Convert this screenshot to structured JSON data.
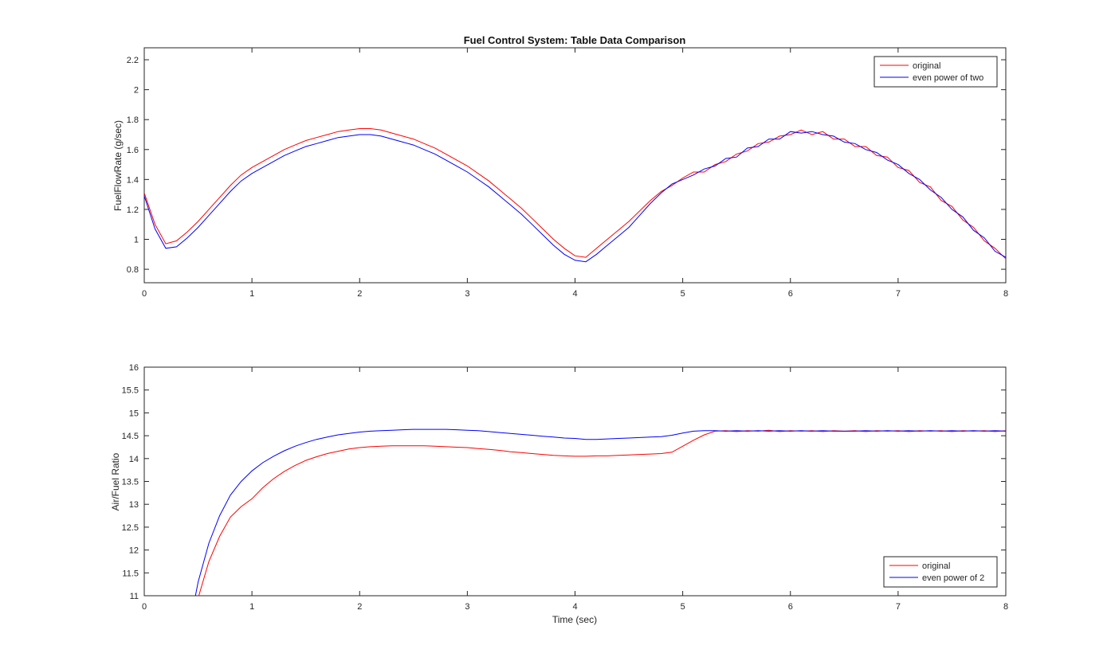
{
  "figure": {
    "background": "#ffffff",
    "axis_color": "#262626",
    "text_color": "#262626",
    "legend_border_color": "#262626"
  },
  "chart_data": [
    {
      "type": "line",
      "title": "Fuel Control System: Table Data Comparison",
      "xlabel": "",
      "ylabel": "FuelFlowRate (g/sec)",
      "xlim": [
        0,
        8
      ],
      "ylim": [
        0.71,
        2.28
      ],
      "xticks": [
        0,
        1,
        2,
        3,
        4,
        5,
        6,
        7,
        8
      ],
      "yticks": [
        0.8,
        1,
        1.2,
        1.4,
        1.6,
        1.8,
        2,
        2.2
      ],
      "grid": false,
      "box": true,
      "legend": {
        "position": "top-right",
        "entries": [
          "original",
          "even power of two"
        ]
      },
      "series": [
        {
          "name": "original",
          "color": "#ff0000",
          "x_start": 0.0,
          "x_step": 0.1,
          "values": [
            1.31,
            1.1,
            0.97,
            0.99,
            1.05,
            1.12,
            1.2,
            1.28,
            1.36,
            1.43,
            1.48,
            1.52,
            1.56,
            1.6,
            1.63,
            1.66,
            1.68,
            1.7,
            1.72,
            1.73,
            1.74,
            1.74,
            1.73,
            1.71,
            1.69,
            1.67,
            1.64,
            1.61,
            1.57,
            1.53,
            1.49,
            1.44,
            1.39,
            1.33,
            1.27,
            1.21,
            1.14,
            1.07,
            1.0,
            0.94,
            0.89,
            0.88,
            0.94,
            1.0,
            1.06,
            1.12,
            1.19,
            1.26,
            1.32,
            1.36,
            1.41,
            1.45,
            1.45,
            1.5,
            1.52,
            1.57,
            1.59,
            1.64,
            1.65,
            1.69,
            1.7,
            1.73,
            1.7,
            1.72,
            1.67,
            1.67,
            1.62,
            1.62,
            1.56,
            1.55,
            1.48,
            1.46,
            1.38,
            1.35,
            1.26,
            1.22,
            1.13,
            1.08,
            0.99,
            0.94,
            0.87
          ]
        },
        {
          "name": "even power of two",
          "color": "#0000ff",
          "x_start": 0.0,
          "x_step": 0.1,
          "values": [
            1.29,
            1.07,
            0.94,
            0.95,
            1.01,
            1.08,
            1.16,
            1.24,
            1.32,
            1.39,
            1.44,
            1.48,
            1.52,
            1.56,
            1.59,
            1.62,
            1.64,
            1.66,
            1.68,
            1.69,
            1.7,
            1.7,
            1.69,
            1.67,
            1.65,
            1.63,
            1.6,
            1.57,
            1.53,
            1.49,
            1.45,
            1.4,
            1.35,
            1.29,
            1.23,
            1.17,
            1.1,
            1.03,
            0.96,
            0.9,
            0.86,
            0.85,
            0.9,
            0.96,
            1.02,
            1.08,
            1.16,
            1.24,
            1.31,
            1.37,
            1.4,
            1.43,
            1.47,
            1.49,
            1.54,
            1.55,
            1.61,
            1.62,
            1.67,
            1.67,
            1.72,
            1.71,
            1.72,
            1.7,
            1.69,
            1.65,
            1.64,
            1.6,
            1.58,
            1.53,
            1.5,
            1.44,
            1.4,
            1.33,
            1.28,
            1.2,
            1.15,
            1.06,
            1.01,
            0.92,
            0.88
          ]
        }
      ]
    },
    {
      "type": "line",
      "title": "",
      "xlabel": "Time (sec)",
      "ylabel": "Air/Fuel Ratio",
      "xlim": [
        0,
        8
      ],
      "ylim": [
        11,
        16
      ],
      "xticks": [
        0,
        1,
        2,
        3,
        4,
        5,
        6,
        7,
        8
      ],
      "yticks": [
        11,
        11.5,
        12,
        12.5,
        13,
        13.5,
        14,
        14.5,
        15,
        15.5,
        16
      ],
      "grid": false,
      "box": true,
      "legend": {
        "position": "bottom-right",
        "entries": [
          "original",
          "even power of 2"
        ]
      },
      "series": [
        {
          "name": "original",
          "color": "#ff0000",
          "x_start": 0.4,
          "x_step": 0.1,
          "values": [
            9.6,
            10.95,
            11.75,
            12.3,
            12.72,
            12.95,
            13.12,
            13.36,
            13.56,
            13.72,
            13.85,
            13.96,
            14.04,
            14.11,
            14.16,
            14.21,
            14.24,
            14.26,
            14.27,
            14.28,
            14.28,
            14.28,
            14.28,
            14.27,
            14.26,
            14.25,
            14.24,
            14.22,
            14.2,
            14.18,
            14.15,
            14.13,
            14.11,
            14.09,
            14.07,
            14.06,
            14.05,
            14.05,
            14.06,
            14.06,
            14.07,
            14.08,
            14.09,
            14.1,
            14.11,
            14.14,
            14.27,
            14.4,
            14.52,
            14.6,
            14.61,
            14.59,
            14.61,
            14.6,
            14.62,
            14.59,
            14.61,
            14.6,
            14.61,
            14.59,
            14.61,
            14.6,
            14.61,
            14.59,
            14.61,
            14.6,
            14.61,
            14.59,
            14.61,
            14.6,
            14.61,
            14.59,
            14.61,
            14.6,
            14.61,
            14.59,
            14.61
          ]
        },
        {
          "name": "even power of 2",
          "color": "#0000ff",
          "x_start": 0.4,
          "x_step": 0.1,
          "values": [
            10.1,
            11.3,
            12.15,
            12.75,
            13.2,
            13.5,
            13.73,
            13.91,
            14.05,
            14.17,
            14.27,
            14.35,
            14.42,
            14.47,
            14.52,
            14.55,
            14.58,
            14.6,
            14.61,
            14.62,
            14.63,
            14.64,
            14.64,
            14.64,
            14.64,
            14.63,
            14.62,
            14.61,
            14.59,
            14.57,
            14.55,
            14.53,
            14.51,
            14.49,
            14.47,
            14.45,
            14.44,
            14.42,
            14.42,
            14.43,
            14.44,
            14.45,
            14.46,
            14.47,
            14.48,
            14.51,
            14.56,
            14.6,
            14.61,
            14.61,
            14.6,
            14.61,
            14.6,
            14.61,
            14.6,
            14.61,
            14.6,
            14.61,
            14.6,
            14.61,
            14.6,
            14.6,
            14.6,
            14.61,
            14.6,
            14.61,
            14.6,
            14.61,
            14.6,
            14.61,
            14.6,
            14.61,
            14.6,
            14.61,
            14.6,
            14.61,
            14.6
          ]
        }
      ]
    }
  ]
}
